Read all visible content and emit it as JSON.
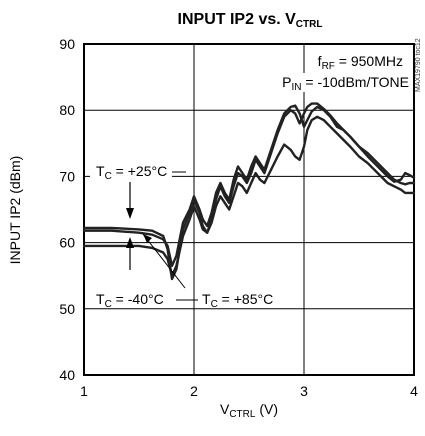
{
  "chart_data": {
    "type": "line",
    "title": {
      "main": "INPUT IP2 vs. V",
      "sub": "CTRL"
    },
    "xlabel": {
      "main": "V",
      "sub": "CTRL",
      "tail": " (V)"
    },
    "ylabel": "INPUT IP2 (dBm)",
    "xlim": [
      1,
      4
    ],
    "ylim": [
      40,
      90
    ],
    "xticks": [
      "1",
      "2",
      "3",
      "4"
    ],
    "yticks": [
      "40",
      "50",
      "60",
      "70",
      "80",
      "90"
    ],
    "xtick_values": [
      1,
      2,
      3,
      4
    ],
    "ytick_values": [
      40,
      50,
      60,
      70,
      80,
      90
    ],
    "grid": true,
    "conditions": [
      {
        "pre": "f",
        "sub": "RF",
        "post": " = 950MHz"
      },
      {
        "pre": "P",
        "sub": "IN",
        "post": " = -10dBm/TONE"
      }
    ],
    "watermark": "MAX19790 toc12",
    "annotations": [
      {
        "pre": "T",
        "sub": "C",
        "post": " = +25°C"
      },
      {
        "pre": "T",
        "sub": "C",
        "post": " = -40°C"
      },
      {
        "pre": "T",
        "sub": "C",
        "post": " = +85°C"
      }
    ],
    "series": [
      {
        "x": [
          1.0,
          1.25,
          1.5,
          1.62,
          1.72,
          1.76,
          1.8,
          1.84,
          1.9,
          1.96,
          2.0,
          2.05,
          2.08,
          2.12,
          2.16,
          2.2,
          2.24,
          2.28,
          2.32,
          2.36,
          2.4,
          2.44,
          2.48,
          2.52,
          2.56,
          2.6,
          2.64,
          2.7,
          2.76,
          2.82,
          2.88,
          2.92,
          2.96,
          3.0,
          3.03,
          3.07,
          3.12,
          3.18,
          3.24,
          3.3,
          3.36,
          3.42,
          3.5,
          3.58,
          3.64,
          3.7,
          3.76,
          3.82,
          3.88,
          3.92,
          3.96,
          4.0
        ],
        "y": [
          61.8,
          61.8,
          61.5,
          61.2,
          60.5,
          59.5,
          56.5,
          58.0,
          63.0,
          65.0,
          67.0,
          65.0,
          63.5,
          62.5,
          64.5,
          67.5,
          69.0,
          67.5,
          66.5,
          69.5,
          71.5,
          70.5,
          69.5,
          71.5,
          73.0,
          72.0,
          71.0,
          74.0,
          77.0,
          79.5,
          80.5,
          80.7,
          79.5,
          77.5,
          78.5,
          79.8,
          80.5,
          80.0,
          79.0,
          77.5,
          77.0,
          76.0,
          74.5,
          73.5,
          72.5,
          71.5,
          70.5,
          69.5,
          69.0,
          68.8,
          69.0,
          69.0
        ]
      },
      {
        "x": [
          1.0,
          1.25,
          1.5,
          1.62,
          1.72,
          1.76,
          1.8,
          1.84,
          1.9,
          1.96,
          2.0,
          2.05,
          2.08,
          2.12,
          2.16,
          2.2,
          2.24,
          2.28,
          2.32,
          2.36,
          2.4,
          2.44,
          2.48,
          2.52,
          2.56,
          2.6,
          2.64,
          2.7,
          2.76,
          2.82,
          2.88,
          2.92,
          2.96,
          3.0,
          3.03,
          3.07,
          3.12,
          3.18,
          3.24,
          3.3,
          3.36,
          3.42,
          3.5,
          3.58,
          3.64,
          3.7,
          3.76,
          3.82,
          3.88,
          3.92,
          3.96,
          4.0
        ],
        "y": [
          59.5,
          59.5,
          59.5,
          59.2,
          58.5,
          57.5,
          55.0,
          56.5,
          61.0,
          63.5,
          65.5,
          63.5,
          62.0,
          61.5,
          63.0,
          65.5,
          67.0,
          66.0,
          65.0,
          67.0,
          69.0,
          68.5,
          67.5,
          69.0,
          70.5,
          69.5,
          69.0,
          71.0,
          73.0,
          74.8,
          74.0,
          73.0,
          72.5,
          74.5,
          77.0,
          78.5,
          79.0,
          78.5,
          77.5,
          76.5,
          75.5,
          74.5,
          73.0,
          72.0,
          71.0,
          70.0,
          69.0,
          68.5,
          68.0,
          67.5,
          67.5,
          67.5
        ]
      },
      {
        "x": [
          1.0,
          1.25,
          1.5,
          1.62,
          1.72,
          1.76,
          1.8,
          1.84,
          1.9,
          1.96,
          2.0,
          2.05,
          2.08,
          2.12,
          2.16,
          2.2,
          2.24,
          2.28,
          2.32,
          2.36,
          2.4,
          2.44,
          2.48,
          2.52,
          2.56,
          2.6,
          2.64,
          2.7,
          2.76,
          2.82,
          2.88,
          2.92,
          2.96,
          3.0,
          3.03,
          3.07,
          3.12,
          3.18,
          3.24,
          3.3,
          3.36,
          3.42,
          3.5,
          3.58,
          3.64,
          3.7,
          3.76,
          3.82,
          3.88,
          3.92,
          3.96,
          4.0
        ],
        "y": [
          62.2,
          62.2,
          62.0,
          61.8,
          61.0,
          59.0,
          54.5,
          56.0,
          62.0,
          64.5,
          66.5,
          64.5,
          62.5,
          61.5,
          63.5,
          66.5,
          68.5,
          67.0,
          66.0,
          68.5,
          70.5,
          70.0,
          69.0,
          70.5,
          72.5,
          71.5,
          70.5,
          73.5,
          76.5,
          79.0,
          80.0,
          79.5,
          78.0,
          79.5,
          80.5,
          81.0,
          81.0,
          80.2,
          79.2,
          78.0,
          77.0,
          76.0,
          74.5,
          73.0,
          72.0,
          71.0,
          70.0,
          69.2,
          69.5,
          70.5,
          70.2,
          69.8
        ]
      }
    ]
  }
}
